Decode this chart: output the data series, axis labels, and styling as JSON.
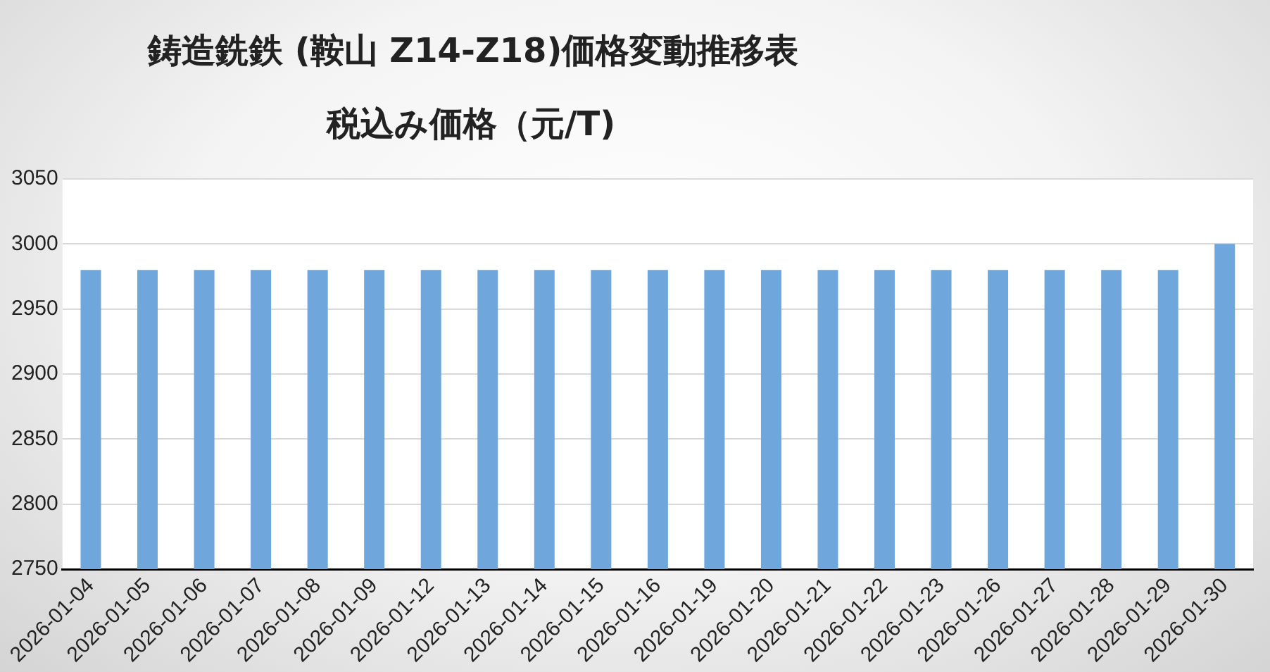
{
  "chart_data": {
    "type": "bar",
    "title": "鋳造銑鉄 (鞍山 Z14-Z18)価格変動推移表",
    "subtitle": "税込み価格（元/T)",
    "categories": [
      "2026-01-04",
      "2026-01-05",
      "2026-01-06",
      "2026-01-07",
      "2026-01-08",
      "2026-01-09",
      "2026-01-12",
      "2026-01-13",
      "2026-01-14",
      "2026-01-15",
      "2026-01-16",
      "2026-01-19",
      "2026-01-20",
      "2026-01-21",
      "2026-01-22",
      "2026-01-23",
      "2026-01-26",
      "2026-01-27",
      "2026-01-28",
      "2026-01-29",
      "2026-01-30"
    ],
    "values": [
      2980,
      2980,
      2980,
      2980,
      2980,
      2980,
      2980,
      2980,
      2980,
      2980,
      2980,
      2980,
      2980,
      2980,
      2980,
      2980,
      2980,
      2980,
      2980,
      2980,
      3000
    ],
    "color": "#6fa6db",
    "ylim": [
      2750,
      3050
    ],
    "yticks": [
      2750,
      2800,
      2850,
      2900,
      2950,
      3000,
      3050
    ],
    "grid": "y",
    "legend": false
  }
}
